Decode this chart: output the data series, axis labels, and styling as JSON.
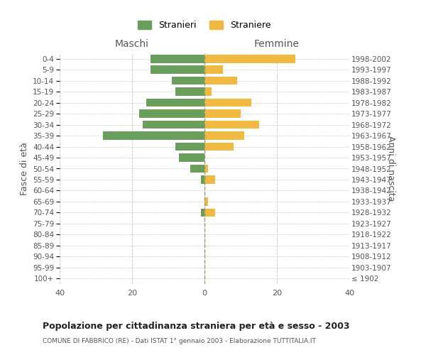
{
  "age_groups": [
    "100+",
    "95-99",
    "90-94",
    "85-89",
    "80-84",
    "75-79",
    "70-74",
    "65-69",
    "60-64",
    "55-59",
    "50-54",
    "45-49",
    "40-44",
    "35-39",
    "30-34",
    "25-29",
    "20-24",
    "15-19",
    "10-14",
    "5-9",
    "0-4"
  ],
  "birth_years": [
    "≤ 1902",
    "1903-1907",
    "1908-1912",
    "1913-1917",
    "1918-1922",
    "1923-1927",
    "1928-1932",
    "1933-1937",
    "1938-1942",
    "1943-1947",
    "1948-1952",
    "1953-1957",
    "1958-1962",
    "1963-1967",
    "1968-1972",
    "1973-1977",
    "1978-1982",
    "1983-1987",
    "1988-1992",
    "1993-1997",
    "1998-2002"
  ],
  "maschi": [
    0,
    0,
    0,
    0,
    0,
    0,
    1,
    0,
    0,
    1,
    4,
    7,
    8,
    28,
    17,
    18,
    16,
    8,
    9,
    15,
    15
  ],
  "femmine": [
    0,
    0,
    0,
    0,
    0,
    0,
    3,
    1,
    0,
    3,
    1,
    0,
    8,
    11,
    15,
    10,
    13,
    2,
    9,
    5,
    25
  ],
  "color_maschi": "#6a9e5c",
  "color_femmine": "#f0b942",
  "xlim": 40,
  "title": "Popolazione per cittadinanza straniera per età e sesso - 2003",
  "subtitle": "COMUNE DI FABBRICO (RE) - Dati ISTAT 1° gennaio 2003 - Elaborazione TUTTITALIA.IT",
  "ylabel_left": "Fasce di età",
  "ylabel_right": "Anni di nascita",
  "label_maschi": "Maschi",
  "label_femmine": "Femmine",
  "legend_stranieri": "Stranieri",
  "legend_straniere": "Straniere",
  "background_color": "#ffffff",
  "grid_color": "#cccccc"
}
